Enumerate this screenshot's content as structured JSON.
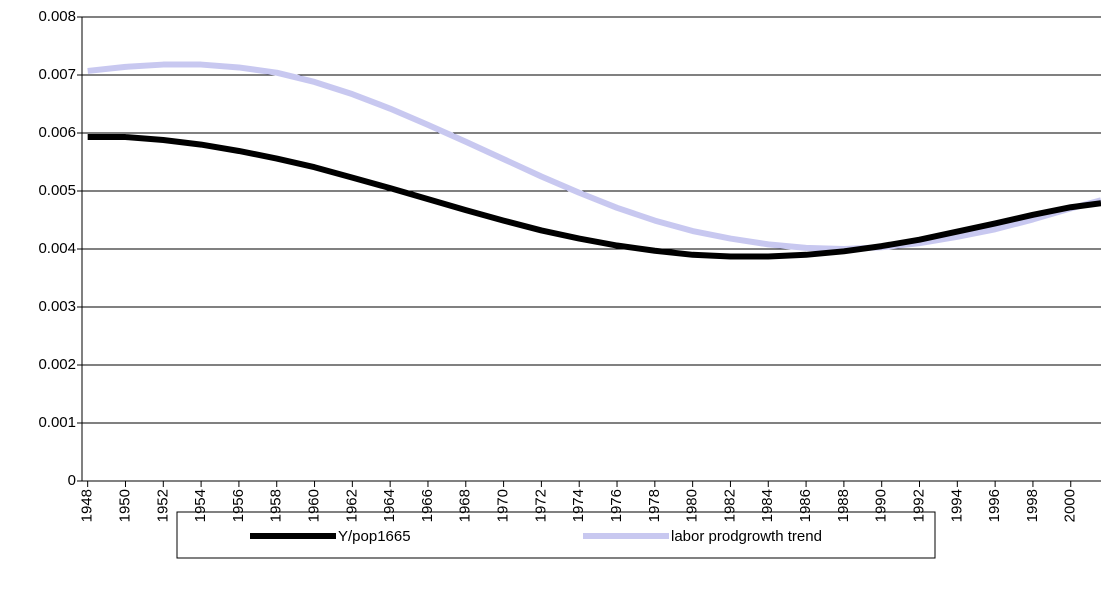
{
  "chart_data": {
    "type": "line",
    "x": [
      1948,
      1950,
      1952,
      1954,
      1956,
      1958,
      1960,
      1962,
      1964,
      1966,
      1968,
      1970,
      1972,
      1974,
      1976,
      1978,
      1980,
      1982,
      1984,
      1986,
      1988,
      1990,
      1992,
      1994,
      1996,
      1998,
      2000,
      2001.6
    ],
    "series": [
      {
        "name": "Y/pop1665",
        "color": "#000000",
        "values": [
          0.00593,
          0.00593,
          0.00588,
          0.0058,
          0.00569,
          0.00556,
          0.00541,
          0.00523,
          0.00505,
          0.00486,
          0.00467,
          0.00449,
          0.00432,
          0.00418,
          0.00406,
          0.00397,
          0.0039,
          0.00387,
          0.00387,
          0.0039,
          0.00396,
          0.00405,
          0.00416,
          0.0043,
          0.00444,
          0.00459,
          0.00472,
          0.00479
        ]
      },
      {
        "name": "labor prodgrowth trend",
        "color": "#c8c8f0",
        "values": [
          0.00707,
          0.00714,
          0.00718,
          0.00718,
          0.00713,
          0.00704,
          0.00688,
          0.00667,
          0.00642,
          0.00614,
          0.00585,
          0.00555,
          0.00525,
          0.00497,
          0.00471,
          0.00449,
          0.00431,
          0.00418,
          0.00408,
          0.00402,
          0.004,
          0.00403,
          0.0041,
          0.00421,
          0.00434,
          0.00451,
          0.0047,
          0.00484
        ]
      }
    ],
    "xlim": [
      1947.7,
      2001.6
    ],
    "xticks": [
      1948,
      1950,
      1952,
      1954,
      1956,
      1958,
      1960,
      1962,
      1964,
      1966,
      1968,
      1970,
      1972,
      1974,
      1976,
      1978,
      1980,
      1982,
      1984,
      1986,
      1988,
      1990,
      1992,
      1994,
      1996,
      1998,
      2000
    ],
    "ylim": [
      0,
      0.008
    ],
    "yticks": [
      0,
      0.001,
      0.002,
      0.003,
      0.004,
      0.005,
      0.006,
      0.007,
      0.008
    ],
    "grid": true
  }
}
